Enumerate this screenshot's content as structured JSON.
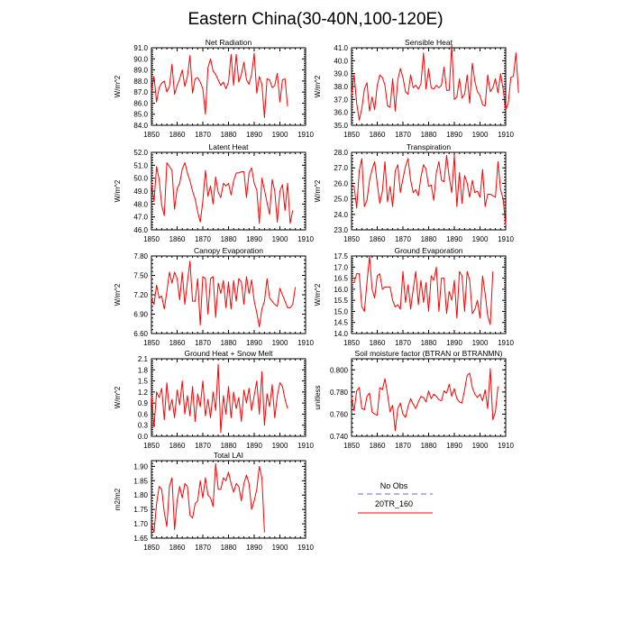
{
  "title": "Eastern China(30-40N,100-120E)",
  "colors": {
    "model": "#ff0000",
    "obs": "#9999ee",
    "axis": "#000000"
  },
  "legend": {
    "obs_label": "No Obs",
    "model_label": "20TR_160"
  },
  "chart_data": [
    {
      "type": "line",
      "title": "Net Radiation",
      "ylabel": "W/m^2",
      "xlim": [
        1850,
        1910
      ],
      "xticks": [
        1850,
        1860,
        1870,
        1880,
        1890,
        1900,
        1910
      ],
      "ylim": [
        84.0,
        91.0
      ],
      "yticks": [
        "84.0",
        "85.0",
        "86.0",
        "87.0",
        "88.0",
        "89.0",
        "90.0",
        "91.0"
      ],
      "series": [
        {
          "name": "20TR_160",
          "x_start": 1850,
          "values": [
            87.2,
            88.4,
            86.1,
            87.4,
            87.8,
            88.0,
            87.0,
            87.5,
            89.5,
            86.8,
            87.6,
            88.2,
            89.0,
            87.5,
            88.4,
            90.3,
            86.9,
            88.2,
            88.3,
            87.9,
            87.3,
            85.0,
            89.2,
            90.0,
            88.9,
            88.6,
            88.1,
            87.6,
            87.9,
            87.3,
            87.9,
            90.4,
            87.6,
            90.4,
            87.9,
            88.6,
            89.7,
            88.1,
            87.7,
            88.6,
            90.5,
            86.9,
            88.4,
            87.7,
            84.7,
            88.2,
            88.1,
            87.4,
            87.6,
            88.7,
            86.1,
            88.1,
            88.2,
            85.7
          ]
        }
      ]
    },
    {
      "type": "line",
      "title": "Sensible Heat",
      "ylabel": "W/m^2",
      "xlim": [
        1850,
        1910
      ],
      "xticks": [
        1850,
        1860,
        1870,
        1880,
        1890,
        1900,
        1910
      ],
      "ylim": [
        35.0,
        41.0
      ],
      "yticks": [
        "35.0",
        "36.0",
        "37.0",
        "38.0",
        "39.0",
        "40.0",
        "41.0"
      ],
      "series": [
        {
          "name": "20TR_160",
          "x_start": 1850,
          "values": [
            37.4,
            38.9,
            36.7,
            35.4,
            36.3,
            37.8,
            38.3,
            36.1,
            37.2,
            36.2,
            38.1,
            38.9,
            38.7,
            38.1,
            36.5,
            36.4,
            38.6,
            36.1,
            38.5,
            39.4,
            38.7,
            37.6,
            37.4,
            38.9,
            37.9,
            38.1,
            37.8,
            38.2,
            40.6,
            37.8,
            39.4,
            37.9,
            37.8,
            38.1,
            37.9,
            38.1,
            39.5,
            37.7,
            37.7,
            41.2,
            37.0,
            37.2,
            38.6,
            37.1,
            37.4,
            38.9,
            36.7,
            39.8,
            38.4,
            37.6,
            37.3,
            36.6,
            36.5,
            38.9,
            37.6,
            37.9,
            38.6,
            37.5,
            39.0,
            37.8,
            36.2,
            36.7,
            38.7,
            38.8,
            40.6,
            37.5
          ]
        }
      ]
    },
    {
      "type": "line",
      "title": "Latent Heat",
      "ylabel": "W/m^2",
      "xlim": [
        1850,
        1910
      ],
      "xticks": [
        1850,
        1860,
        1870,
        1880,
        1890,
        1900,
        1910
      ],
      "ylim": [
        46.0,
        52.0
      ],
      "yticks": [
        "46.0",
        "47.0",
        "48.0",
        "49.0",
        "50.0",
        "51.0",
        "52.0"
      ],
      "series": [
        {
          "name": "20TR_160",
          "x_start": 1850,
          "values": [
            49.6,
            48.2,
            50.9,
            49.9,
            47.9,
            47.1,
            51.2,
            50.9,
            50.6,
            47.6,
            49.2,
            49.6,
            50.7,
            51.2,
            50.4,
            49.8,
            49.0,
            48.4,
            47.4,
            46.6,
            48.2,
            50.6,
            48.6,
            49.4,
            48.0,
            50.1,
            48.9,
            48.5,
            49.6,
            49.4,
            49.6,
            48.7,
            49.8,
            50.4,
            50.4,
            50.5,
            50.5,
            48.5,
            50.4,
            50.8,
            49.6,
            49.1,
            46.5,
            50.0,
            49.1,
            48.1,
            47.2,
            49.9,
            49.0,
            46.6,
            49.0,
            49.5,
            47.5,
            49.6,
            46.5,
            47.5
          ]
        }
      ]
    },
    {
      "type": "line",
      "title": "Transpiration",
      "ylabel": "W/m^2",
      "xlim": [
        1850,
        1910
      ],
      "xticks": [
        1850,
        1860,
        1870,
        1880,
        1890,
        1900,
        1910
      ],
      "ylim": [
        23.0,
        28.0
      ],
      "yticks": [
        "23.0",
        "24.0",
        "25.0",
        "26.0",
        "27.0",
        "28.0"
      ],
      "series": [
        {
          "name": "20TR_160",
          "x_start": 1850,
          "values": [
            25.9,
            25.8,
            24.4,
            26.8,
            27.6,
            24.5,
            24.9,
            26.2,
            26.9,
            27.4,
            26.0,
            24.7,
            25.5,
            27.4,
            24.8,
            25.8,
            24.5,
            26.8,
            27.2,
            25.4,
            26.3,
            27.1,
            27.6,
            26.2,
            25.4,
            25.6,
            25.2,
            26.4,
            27.2,
            26.9,
            25.8,
            25.9,
            24.9,
            26.7,
            27.4,
            26.2,
            26.1,
            27.8,
            26.4,
            25.4,
            27.8,
            24.5,
            26.7,
            24.7,
            26.5,
            26.0,
            25.1,
            26.2,
            25.4,
            25.5,
            25.1,
            26.9,
            24.5,
            25.3,
            25.3,
            25.2,
            25.1,
            27.4,
            25.6,
            25.0,
            23.3
          ]
        }
      ]
    },
    {
      "type": "line",
      "title": "Canopy Evaporation",
      "ylabel": "W/m^2",
      "xlim": [
        1850,
        1910
      ],
      "xticks": [
        1850,
        1860,
        1870,
        1880,
        1890,
        1900,
        1910
      ],
      "ylim": [
        6.6,
        7.8
      ],
      "yticks": [
        "6.60",
        "6.90",
        "7.20",
        "7.50",
        "7.80"
      ],
      "series": [
        {
          "name": "20TR_160",
          "x_start": 1850,
          "values": [
            7.15,
            7.05,
            7.35,
            7.15,
            7.18,
            6.98,
            7.25,
            7.55,
            7.38,
            7.55,
            7.45,
            7.12,
            7.55,
            7.05,
            7.4,
            7.72,
            7.1,
            7.1,
            7.45,
            6.73,
            7.48,
            7.45,
            6.9,
            7.45,
            7.48,
            6.85,
            7.38,
            7.22,
            7.42,
            7.0,
            7.4,
            6.98,
            7.42,
            7.1,
            7.45,
            7.4,
            7.05,
            7.48,
            7.22,
            7.43,
            7.1,
            6.92,
            6.7,
            6.98,
            7.1,
            7.45,
            7.15,
            7.1,
            7.05,
            7.02,
            7.3,
            7.2,
            7.1,
            7.0,
            7.0,
            7.05,
            7.32
          ]
        }
      ]
    },
    {
      "type": "line",
      "title": "Ground Evaporation",
      "ylabel": "W/m^2",
      "xlim": [
        1850,
        1910
      ],
      "xticks": [
        1850,
        1860,
        1870,
        1880,
        1890,
        1900,
        1910
      ],
      "ylim": [
        14.0,
        17.5
      ],
      "yticks": [
        "14.0",
        "14.5",
        "15.0",
        "15.5",
        "16.0",
        "16.5",
        "17.0",
        "17.5"
      ],
      "series": [
        {
          "name": "20TR_160",
          "x_start": 1850,
          "values": [
            16.3,
            16.3,
            16.7,
            16.7,
            15.2,
            15.0,
            16.3,
            17.5,
            16.0,
            15.6,
            16.6,
            16.7,
            16.0,
            16.1,
            16.1,
            16.1,
            15.5,
            15.2,
            15.3,
            15.1,
            16.8,
            15.4,
            16.2,
            15.1,
            16.0,
            16.8,
            15.3,
            16.4,
            15.4,
            16.3,
            15.0,
            16.6,
            16.4,
            17.0,
            15.0,
            16.5,
            16.5,
            14.9,
            15.9,
            15.5,
            16.4,
            14.7,
            16.8,
            16.6,
            15.0,
            16.8,
            16.4,
            14.9,
            15.1,
            15.5,
            14.7,
            16.6,
            15.8,
            14.8,
            14.4,
            16.8
          ]
        }
      ]
    },
    {
      "type": "line",
      "title": "Ground Heat + Snow Melt",
      "ylabel": "W/m^2",
      "xlim": [
        1850,
        1910
      ],
      "xticks": [
        1850,
        1860,
        1870,
        1880,
        1890,
        1900,
        1910
      ],
      "ylim": [
        0.0,
        2.1
      ],
      "yticks": [
        "0.0",
        "0.3",
        "0.6",
        "0.9",
        "1.2",
        "1.5",
        "1.8",
        "2.1"
      ],
      "series": [
        {
          "name": "20TR_160",
          "x_start": 1850,
          "values": [
            1.1,
            0.25,
            1.2,
            1.05,
            1.3,
            0.45,
            1.45,
            0.7,
            1.0,
            0.5,
            1.25,
            0.85,
            1.5,
            0.6,
            1.1,
            0.55,
            1.35,
            0.4,
            1.15,
            0.8,
            1.5,
            0.55,
            1.0,
            0.5,
            1.2,
            0.7,
            1.95,
            0.1,
            1.1,
            0.6,
            1.35,
            0.5,
            1.2,
            0.75,
            1.05,
            0.4,
            1.25,
            0.9,
            1.3,
            0.7,
            1.1,
            1.5,
            0.6,
            1.75,
            0.3,
            1.15,
            0.8,
            1.4,
            0.5,
            1.1,
            1.45,
            1.35,
            1.0,
            0.75
          ]
        }
      ]
    },
    {
      "type": "line",
      "title": "Soil moisture factor (BTRAN or BTRANMN)",
      "ylabel": "unitless",
      "xlim": [
        1850,
        1910
      ],
      "xticks": [
        1850,
        1860,
        1870,
        1880,
        1890,
        1900,
        1910
      ],
      "ylim": [
        0.74,
        0.81
      ],
      "yticks": [
        "0.740",
        "0.760",
        "0.780",
        "0.800"
      ],
      "series": [
        {
          "name": "20TR_160",
          "x_start": 1850,
          "values": [
            0.775,
            0.763,
            0.781,
            0.784,
            0.765,
            0.764,
            0.776,
            0.779,
            0.762,
            0.76,
            0.759,
            0.784,
            0.782,
            0.792,
            0.778,
            0.762,
            0.768,
            0.745,
            0.765,
            0.77,
            0.76,
            0.757,
            0.767,
            0.774,
            0.769,
            0.765,
            0.771,
            0.776,
            0.775,
            0.771,
            0.781,
            0.774,
            0.778,
            0.776,
            0.773,
            0.772,
            0.781,
            0.779,
            0.787,
            0.776,
            0.783,
            0.774,
            0.771,
            0.77,
            0.782,
            0.795,
            0.797,
            0.784,
            0.778,
            0.775,
            0.778,
            0.772,
            0.782,
            0.765,
            0.801,
            0.755,
            0.762,
            0.785
          ]
        }
      ]
    },
    {
      "type": "line",
      "title": "Total LAI",
      "ylabel": "m2/m2",
      "xlim": [
        1850,
        1910
      ],
      "xticks": [
        1850,
        1860,
        1870,
        1880,
        1890,
        1900,
        1910
      ],
      "ylim": [
        1.65,
        1.92
      ],
      "yticks": [
        "1.65",
        "1.70",
        "1.75",
        "1.80",
        "1.85",
        "1.90"
      ],
      "series": [
        {
          "name": "20TR_160",
          "x_start": 1850,
          "values": [
            1.7,
            1.67,
            1.77,
            1.83,
            1.82,
            1.74,
            1.69,
            1.83,
            1.86,
            1.68,
            1.78,
            1.83,
            1.79,
            1.84,
            1.83,
            1.73,
            1.72,
            1.77,
            1.78,
            1.85,
            1.79,
            1.86,
            1.8,
            1.79,
            1.76,
            1.91,
            1.82,
            1.82,
            1.86,
            1.85,
            1.88,
            1.84,
            1.81,
            1.84,
            1.83,
            1.78,
            1.84,
            1.87,
            1.84,
            1.75,
            1.78,
            1.82,
            1.9,
            1.86,
            1.67
          ]
        }
      ]
    }
  ]
}
